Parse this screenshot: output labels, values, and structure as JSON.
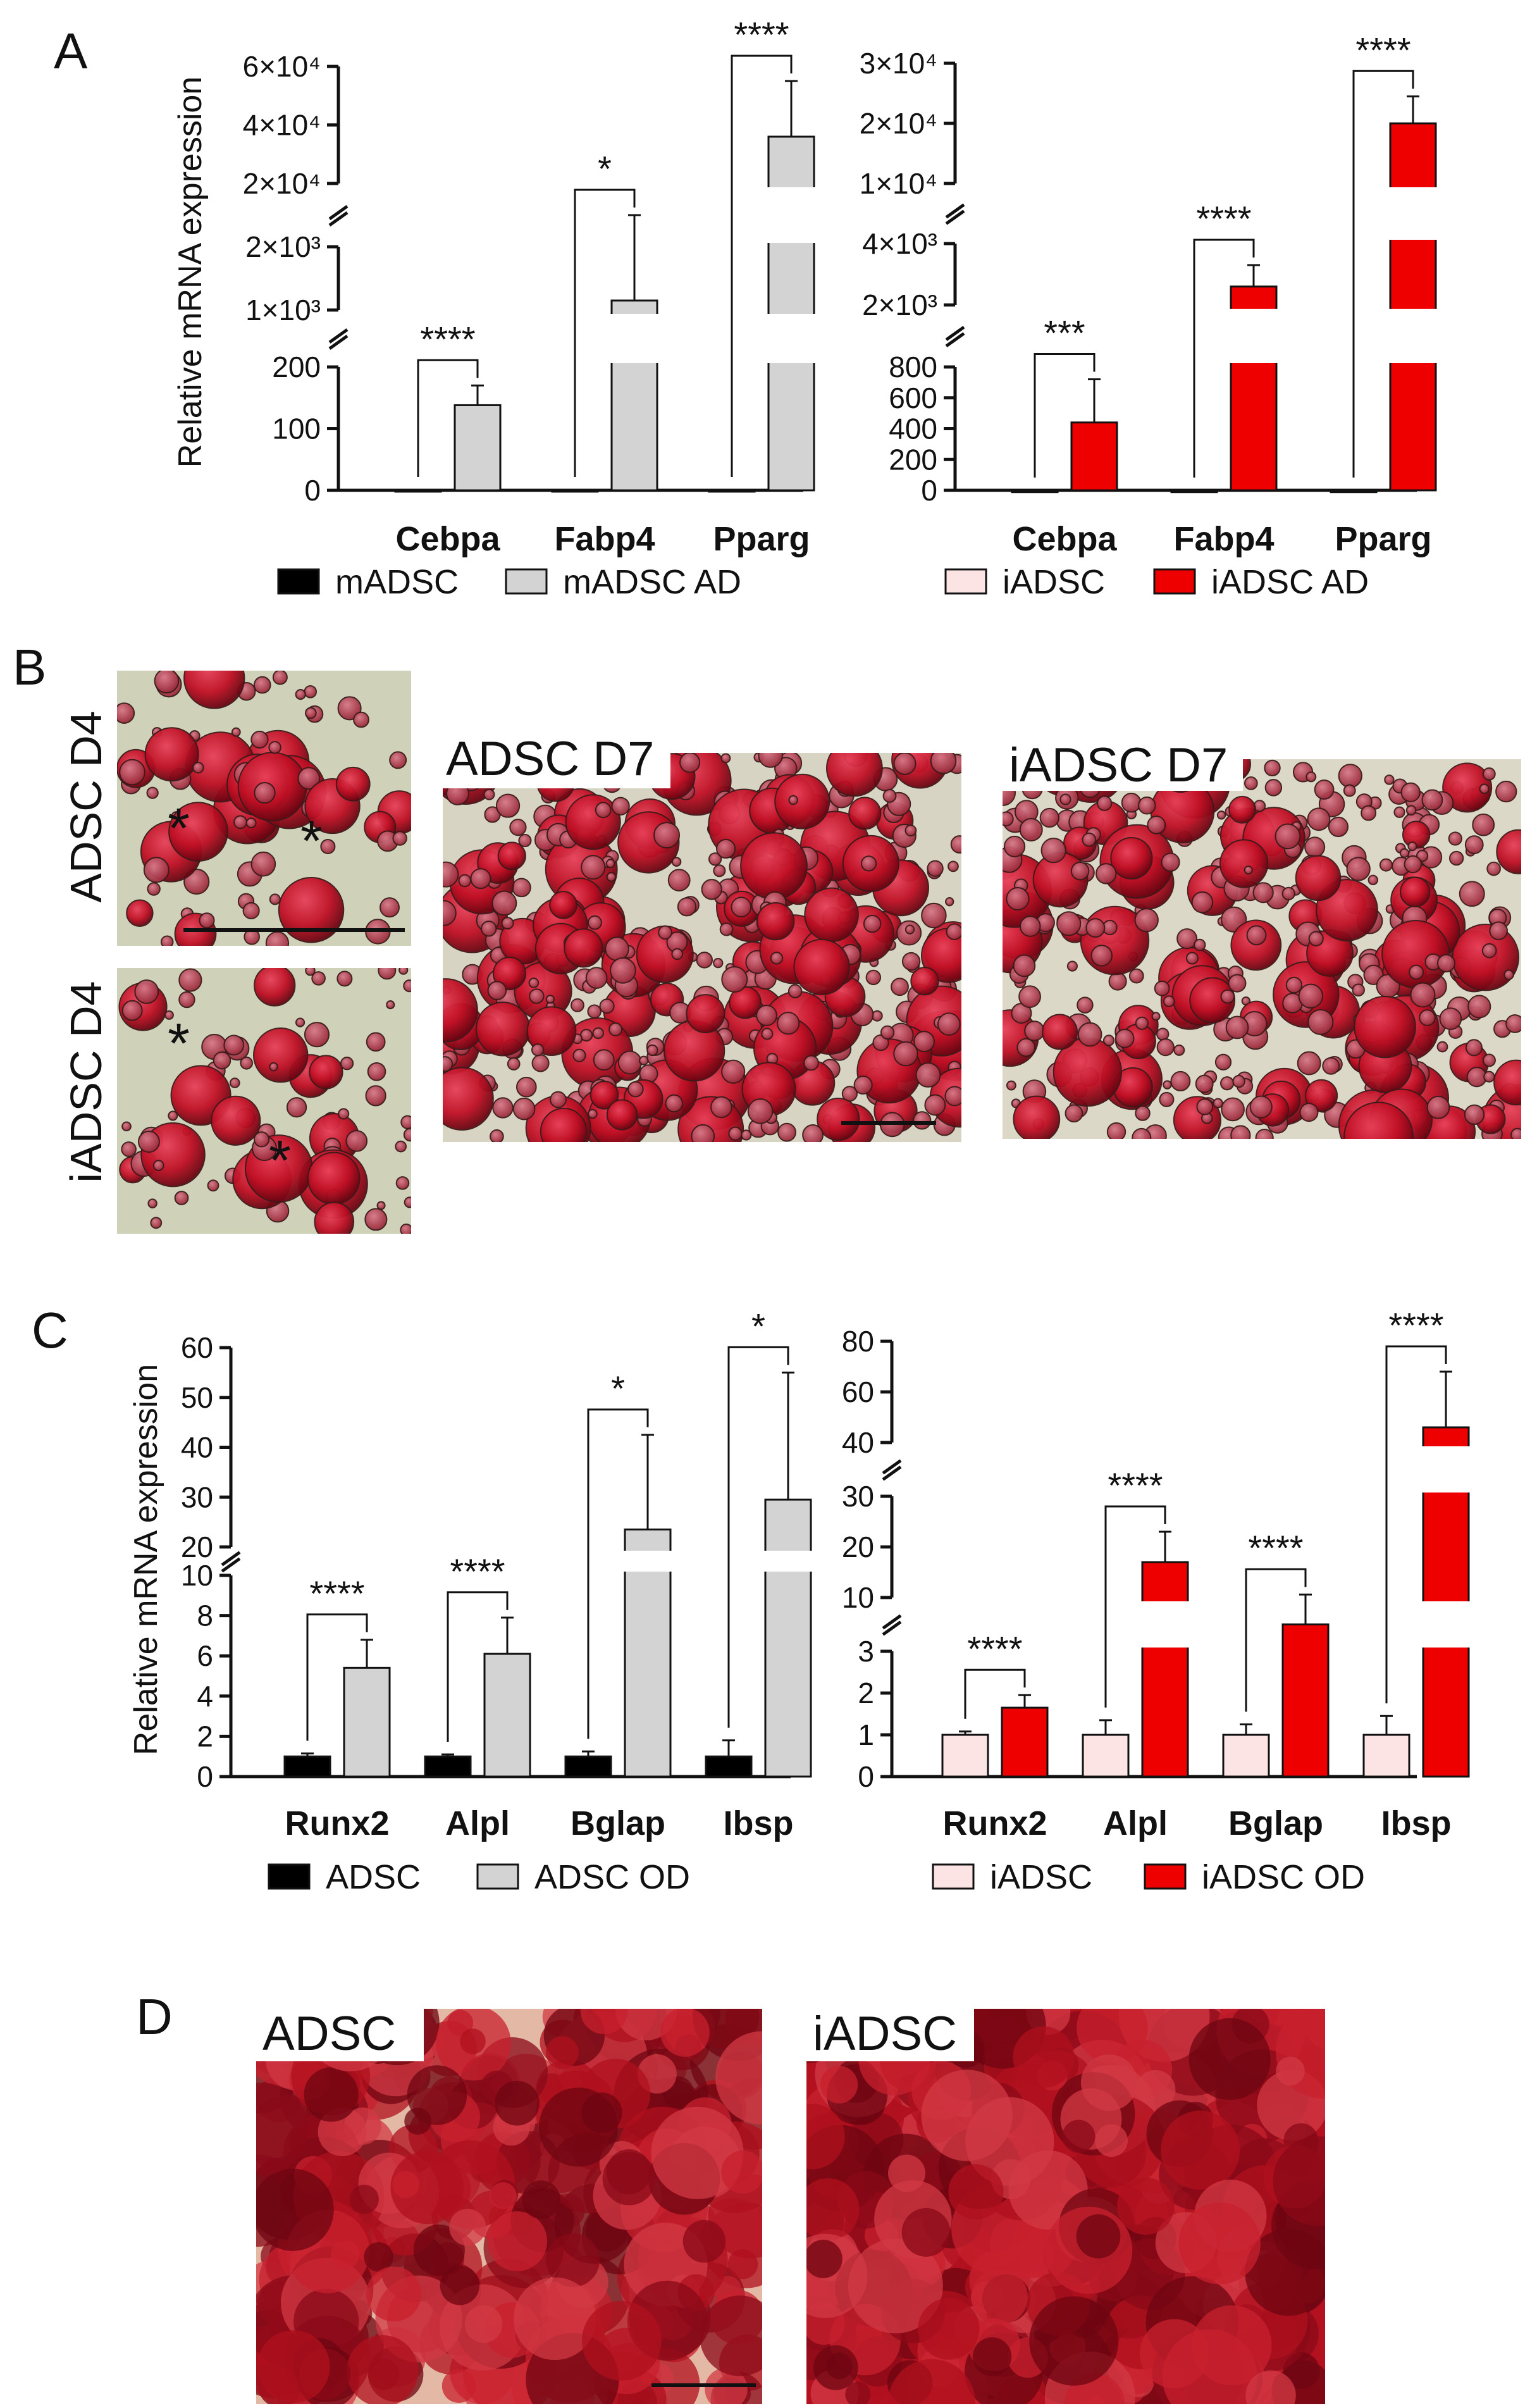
{
  "colors": {
    "black_bar": "#000000",
    "gray_bar": "#d3d3d3",
    "pink_bar": "#fde4e4",
    "red_bar": "#ee0000",
    "stain_red": "#c01025",
    "stain_bg": "#cfd1b8"
  },
  "panels": {
    "A": "A",
    "B": "B",
    "C": "C",
    "D": "D"
  },
  "y_axis_label": "Relative mRNA expression",
  "chart_data": [
    {
      "id": "A1",
      "type": "bar",
      "panel": "A",
      "broken_axis": true,
      "categories": [
        "Cebpa",
        "Fabp4",
        "Pparg"
      ],
      "tick_labels": [
        "0",
        "100",
        "200",
        "1×10³",
        "2×10³",
        "2×10⁴",
        "4×10⁴",
        "6×10⁴"
      ],
      "series": [
        {
          "name": "mADSC",
          "color": "#000000",
          "values": [
            1,
            1,
            1
          ],
          "errors": [
            0,
            0,
            0
          ]
        },
        {
          "name": "mADSC AD",
          "color": "#d3d3d3",
          "values": [
            138,
            1150,
            36000
          ],
          "errors": [
            32,
            900,
            19000
          ]
        }
      ],
      "significance": [
        "****",
        "*",
        "****"
      ]
    },
    {
      "id": "A2",
      "type": "bar",
      "panel": "A",
      "broken_axis": true,
      "categories": [
        "Cebpa",
        "Fabp4",
        "Pparg"
      ],
      "tick_labels": [
        "0",
        "200",
        "400",
        "600",
        "800",
        "2×10³",
        "4×10³",
        "1×10⁴",
        "2×10⁴",
        "3×10⁴"
      ],
      "series": [
        {
          "name": "iADSC",
          "color": "#fde4e4",
          "values": [
            1,
            1,
            1
          ],
          "errors": [
            0,
            0,
            0
          ]
        },
        {
          "name": "iADSC AD",
          "color": "#ee0000",
          "values": [
            440,
            2600,
            20000
          ],
          "errors": [
            280,
            700,
            4500
          ]
        }
      ],
      "significance": [
        "***",
        "****",
        "****"
      ]
    },
    {
      "id": "C1",
      "type": "bar",
      "panel": "C",
      "broken_axis": true,
      "categories": [
        "Runx2",
        "Alpl",
        "Bglap",
        "Ibsp"
      ],
      "tick_labels": [
        "0",
        "2",
        "4",
        "6",
        "8",
        "10",
        "20",
        "30",
        "40",
        "50",
        "60"
      ],
      "series": [
        {
          "name": "ADSC",
          "color": "#000000",
          "values": [
            1,
            1,
            1,
            1
          ],
          "errors": [
            0.15,
            0.1,
            0.25,
            0.8
          ]
        },
        {
          "name": "ADSC OD",
          "color": "#d3d3d3",
          "values": [
            5.4,
            6.1,
            23.5,
            29.5
          ],
          "errors": [
            1.4,
            1.8,
            19,
            25.5
          ]
        }
      ],
      "significance": [
        "****",
        "****",
        "*",
        "*"
      ]
    },
    {
      "id": "C2",
      "type": "bar",
      "panel": "C",
      "broken_axis": true,
      "categories": [
        "Runx2",
        "Alpl",
        "Bglap",
        "Ibsp"
      ],
      "tick_labels": [
        "0",
        "1",
        "2",
        "3",
        "10",
        "20",
        "30",
        "40",
        "60",
        "80"
      ],
      "series": [
        {
          "name": "iADSC",
          "color": "#fde4e4",
          "values": [
            1,
            1,
            1,
            1
          ],
          "errors": [
            0.08,
            0.35,
            0.25,
            0.45
          ]
        },
        {
          "name": "iADSC OD",
          "color": "#ee0000",
          "values": [
            1.65,
            17,
            9,
            46
          ],
          "errors": [
            0.3,
            6,
            1.6,
            22
          ]
        }
      ],
      "significance": [
        "****",
        "****",
        "****",
        "****"
      ]
    }
  ],
  "micrographs": {
    "adsc_d4": "ADSC D4",
    "iadsc_d4": "iADSC D4",
    "adsc_d7": "ADSC D7",
    "iadsc_d7": "iADSC D7",
    "adsc_od": "ADSC",
    "iadsc_od": "iADSC",
    "asterisk": "*"
  }
}
